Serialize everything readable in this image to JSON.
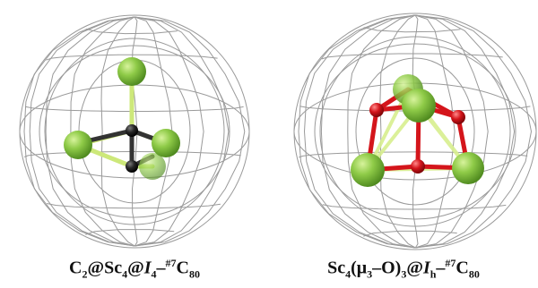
{
  "colors": {
    "cage": "#9a9a9a",
    "scandium": "#7fbf3f",
    "scandium_highlight": "#c9ec8a",
    "carbon": "#1d1d1d",
    "oxygen": "#d4151b",
    "bond": "#d8ef8f"
  },
  "left_molecule": {
    "cage_label_atoms": "Sc4 cluster with C2 unit",
    "caption": {
      "p1": "C",
      "s1": "2",
      "p2": "@Sc",
      "s2": "4",
      "p3": "@",
      "it1": "I",
      "s3": "4",
      "p4": "–",
      "sup1": "#7",
      "p5": "C",
      "s4": "80"
    }
  },
  "right_molecule": {
    "caption": {
      "p1": "Sc",
      "s1": "4",
      "p2": "(μ",
      "s2": "3",
      "p3": "–O)",
      "s3": "3",
      "p4": "@",
      "it1": "I",
      "s4": "h",
      "p5": "–",
      "sup1": "#7",
      "p6": "C",
      "s5": "80"
    }
  }
}
